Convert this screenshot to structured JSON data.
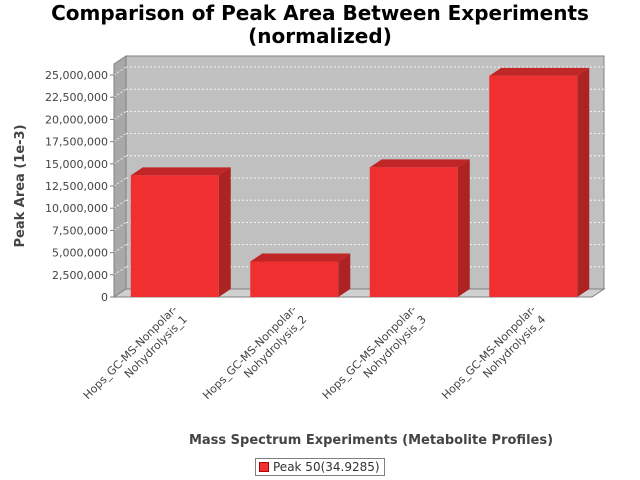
{
  "chart_data": {
    "type": "bar",
    "title": [
      "Comparison of Peak Area Between Experiments",
      "(normalized)"
    ],
    "xlabel": "Mass Spectrum Experiments (Metabolite Profiles)",
    "ylabel": "Peak Area (1e-3)",
    "categories": [
      [
        "Hops_GC-MS-Nonpolar-",
        "Nohydrolysis_1"
      ],
      [
        "Hops_GC-MS-Nonpolar-",
        "Nohydrolysis_2"
      ],
      [
        "Hops_GC-MS-Nonpolar-",
        "Nohydrolysis_3"
      ],
      [
        "Hops_GC-MS-Nonpolar-",
        "Nohydrolysis_4"
      ]
    ],
    "series": [
      {
        "name": "Peak 50(34.9285)",
        "values": [
          13700000,
          4000000,
          14600000,
          24900000
        ],
        "color": "#f03030"
      }
    ],
    "ylim": [
      0,
      25000000
    ],
    "yticks": [
      0,
      2500000,
      5000000,
      7500000,
      10000000,
      12500000,
      15000000,
      17500000,
      20000000,
      22500000,
      25000000
    ],
    "ytick_labels": [
      "0",
      "2,500,000",
      "5,000,000",
      "7,500,000",
      "10,000,000",
      "12,500,000",
      "15,000,000",
      "17,500,000",
      "20,000,000",
      "22,500,000",
      "25,000,000"
    ],
    "grid": true,
    "legend_position": "bottom",
    "plot_background": "#c0c0c0"
  }
}
